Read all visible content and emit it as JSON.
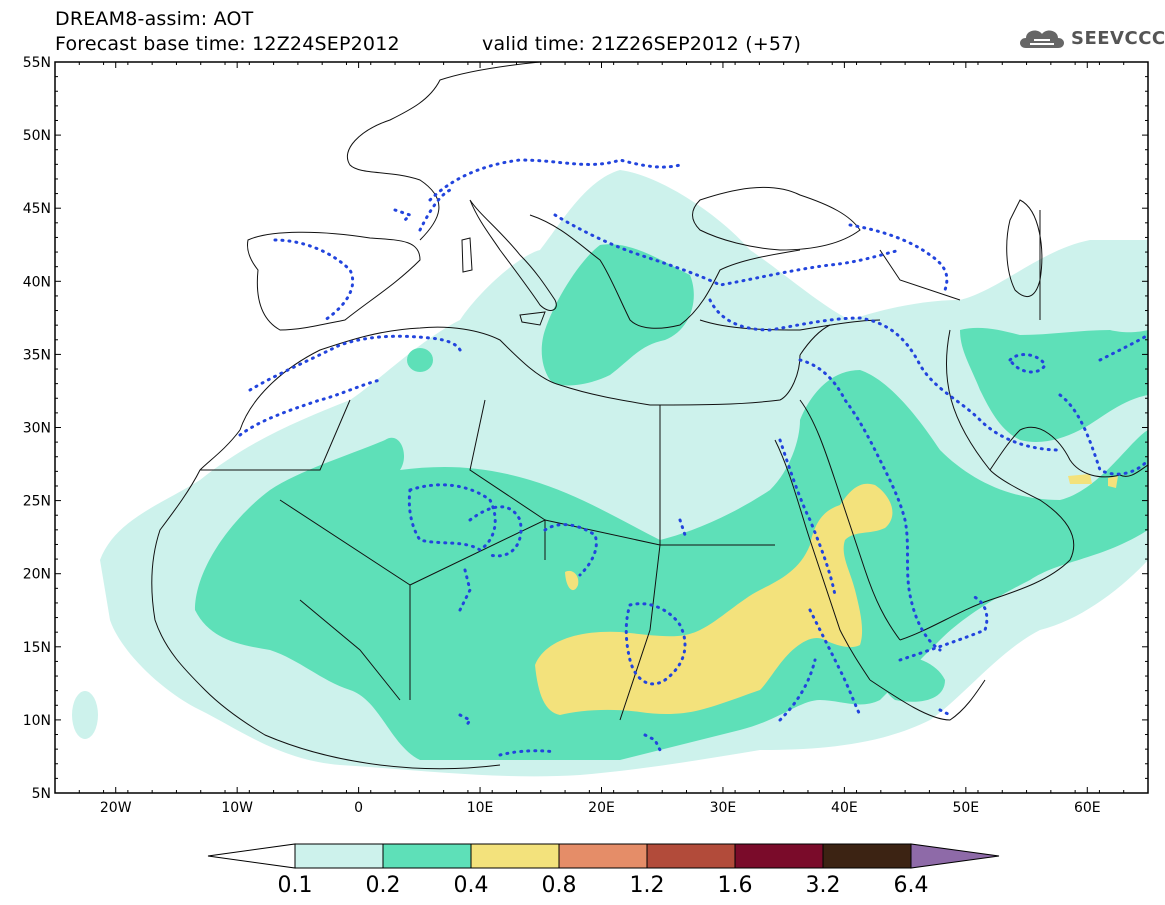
{
  "title": {
    "line1": "DREAM8-assim: AOT",
    "line2": "Forecast base time: 12Z24SEP2012",
    "valid": "valid time: 21Z26SEP2012 (+57)"
  },
  "logo": {
    "text": "SEEVCCC",
    "icon": "cloud-icon"
  },
  "axes": {
    "lat_labels": [
      "55N",
      "50N",
      "45N",
      "40N",
      "35N",
      "30N",
      "25N",
      "20N",
      "15N",
      "10N",
      "5N"
    ],
    "lon_labels": [
      "20W",
      "10W",
      "0",
      "10E",
      "20E",
      "30E",
      "40E",
      "50E",
      "60E"
    ]
  },
  "colorbar": {
    "colors": [
      "#cdf2ec",
      "#5ee0b8",
      "#f3e27c",
      "#e58d68",
      "#b24b3a",
      "#7a0b2a",
      "#3c2313",
      "#8e6aa8"
    ],
    "under_color": "#ffffff",
    "labels": [
      "0.1",
      "0.2",
      "0.4",
      "0.8",
      "1.2",
      "1.6",
      "3.2",
      "6.4"
    ]
  },
  "map": {
    "extent": {
      "lon": [
        -25,
        65
      ],
      "lat": [
        5,
        55
      ]
    },
    "field": "AOT",
    "contour_line_color": "#2244dd"
  }
}
